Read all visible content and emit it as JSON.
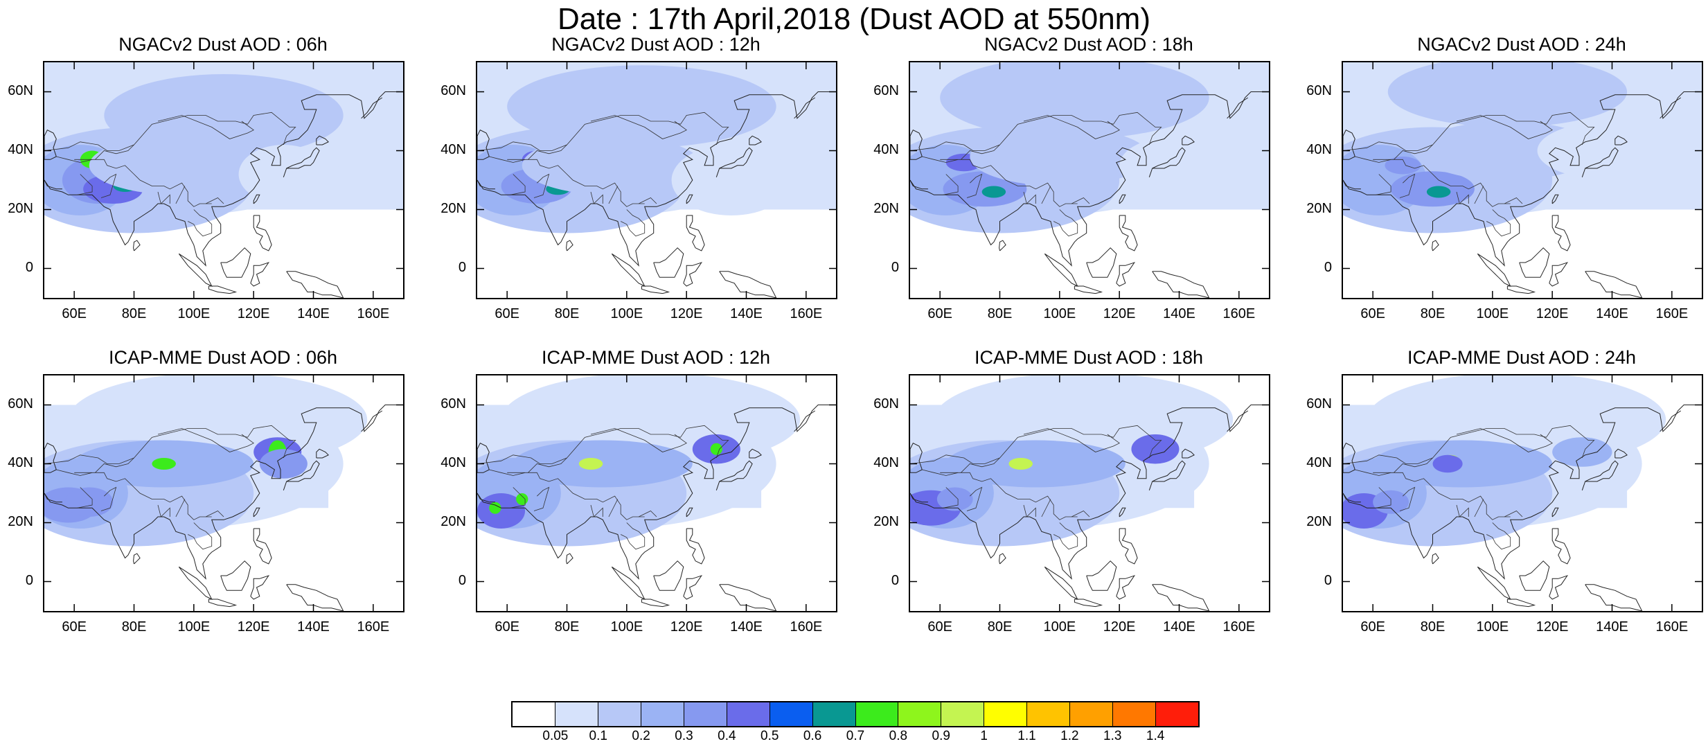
{
  "figure_title": "Date : 17th April,2018 (Dust AOD at 550nm)",
  "y_tick_labels": [
    "60N",
    "40N",
    "20N",
    "0"
  ],
  "x_tick_labels": [
    "60E",
    "80E",
    "100E",
    "120E",
    "140E",
    "160E"
  ],
  "panels": [
    {
      "title": "NGACv2 Dust AOD : 06h",
      "model": "NGACv2",
      "hour": "06h"
    },
    {
      "title": "NGACv2 Dust AOD : 12h",
      "model": "NGACv2",
      "hour": "12h"
    },
    {
      "title": "NGACv2 Dust AOD : 18h",
      "model": "NGACv2",
      "hour": "18h"
    },
    {
      "title": "NGACv2 Dust AOD : 24h",
      "model": "NGACv2",
      "hour": "24h"
    },
    {
      "title": "ICAP-MME Dust AOD : 06h",
      "model": "ICAP-MME",
      "hour": "06h"
    },
    {
      "title": "ICAP-MME Dust AOD : 12h",
      "model": "ICAP-MME",
      "hour": "12h"
    },
    {
      "title": "ICAP-MME Dust AOD : 18h",
      "model": "ICAP-MME",
      "hour": "18h"
    },
    {
      "title": "ICAP-MME Dust AOD : 24h",
      "model": "ICAP-MME",
      "hour": "24h"
    }
  ],
  "colorbar": {
    "labels": [
      "0.05",
      "0.1",
      "0.2",
      "0.3",
      "0.4",
      "0.5",
      "0.6",
      "0.7",
      "0.8",
      "0.9",
      "1",
      "1.1",
      "1.2",
      "1.3",
      "1.4"
    ],
    "colors": [
      "#ffffff",
      "#d6e2fb",
      "#b7c8f7",
      "#9bb3f4",
      "#8699f0",
      "#6a6cea",
      "#0a5ef0",
      "#099892",
      "#3ceb1c",
      "#8ef51c",
      "#c4f451",
      "#fffe00",
      "#ffc300",
      "#ffa000",
      "#ff7800",
      "#ff1e0a"
    ]
  }
}
